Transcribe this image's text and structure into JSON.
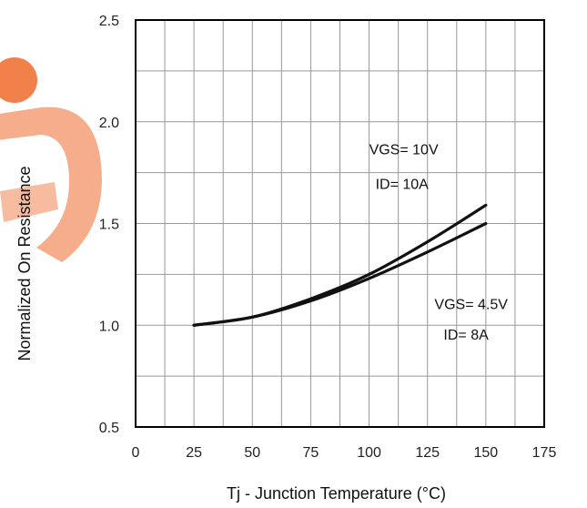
{
  "chart_data": {
    "type": "line",
    "title": "",
    "xlabel": "Tj - Junction Temperature (°C)",
    "ylabel": "Normalized On Resistance",
    "xlim": [
      0,
      175
    ],
    "ylim": [
      0.5,
      2.5
    ],
    "x_ticks": [
      "0",
      "25",
      "50",
      "75",
      "100",
      "125",
      "150",
      "175"
    ],
    "y_ticks": [
      "0.5",
      "1.0",
      "1.5",
      "2.0",
      "2.5"
    ],
    "grid": true,
    "x_minor_step": 12.5,
    "y_minor_step": 0.25,
    "series": [
      {
        "x": [
          25,
          50,
          75,
          100,
          125,
          150
        ],
        "y": [
          1.0,
          1.04,
          1.13,
          1.25,
          1.41,
          1.59
        ]
      },
      {
        "x": [
          25,
          50,
          75,
          100,
          125,
          150
        ],
        "y": [
          1.0,
          1.04,
          1.12,
          1.23,
          1.36,
          1.5
        ]
      }
    ],
    "annotations": [
      {
        "lines": [
          "VGS= 10V",
          "ID= 10A"
        ],
        "x": 100,
        "y": [
          1.84,
          1.67
        ]
      },
      {
        "lines": [
          "VGS= 4.5V",
          "ID= 8A"
        ],
        "x": 128,
        "y": [
          1.08,
          0.93
        ]
      }
    ],
    "colors": {
      "line": "#111111",
      "grid": "#999999",
      "frame": "#000000",
      "watermark": "#ee6a2b"
    }
  }
}
